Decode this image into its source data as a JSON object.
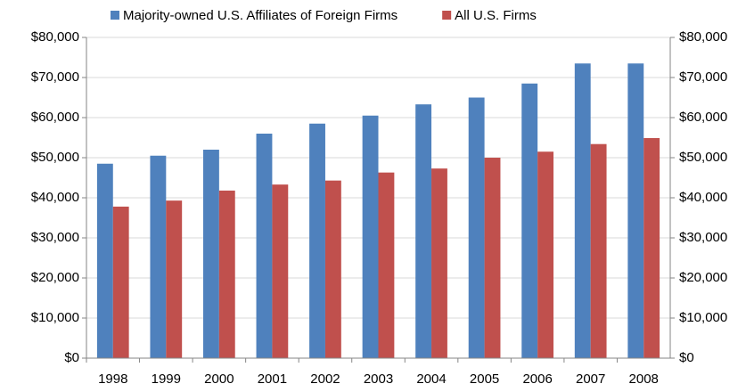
{
  "chart_data": {
    "type": "bar",
    "categories": [
      "1998",
      "1999",
      "2000",
      "2001",
      "2002",
      "2003",
      "2004",
      "2005",
      "2006",
      "2007",
      "2008"
    ],
    "series": [
      {
        "name": "Majority-owned U.S. Affiliates of Foreign Firms",
        "color": "#4f81bd",
        "values": [
          48500,
          50500,
          52000,
          56000,
          58500,
          60500,
          63300,
          65000,
          68500,
          73500,
          73500
        ]
      },
      {
        "name": "All U.S. Firms",
        "color": "#c0504d",
        "values": [
          37800,
          39300,
          41800,
          43300,
          44300,
          46300,
          47300,
          50000,
          51500,
          53400,
          54900
        ]
      }
    ],
    "ylim": [
      0,
      80000
    ],
    "yticks": [
      {
        "value": 0,
        "label": "$0"
      },
      {
        "value": 10000,
        "label": "$10,000"
      },
      {
        "value": 20000,
        "label": "$20,000"
      },
      {
        "value": 30000,
        "label": "$30,000"
      },
      {
        "value": 40000,
        "label": "$40,000"
      },
      {
        "value": 50000,
        "label": "$50,000"
      },
      {
        "value": 60000,
        "label": "$60,000"
      },
      {
        "value": 70000,
        "label": "$70,000"
      },
      {
        "value": 80000,
        "label": "$80,000"
      }
    ],
    "y2lim": [
      0,
      80000
    ],
    "y2ticks": [
      {
        "value": 0,
        "label": "$0"
      },
      {
        "value": 10000,
        "label": "$10,000"
      },
      {
        "value": 20000,
        "label": "$20,000"
      },
      {
        "value": 30000,
        "label": "$30,000"
      },
      {
        "value": 40000,
        "label": "$40,000"
      },
      {
        "value": 50000,
        "label": "$50,000"
      },
      {
        "value": 60000,
        "label": "$60,000"
      },
      {
        "value": 70000,
        "label": "$70,000"
      },
      {
        "value": 80000,
        "label": "$80,000"
      }
    ],
    "grid": true,
    "legend": "top"
  }
}
